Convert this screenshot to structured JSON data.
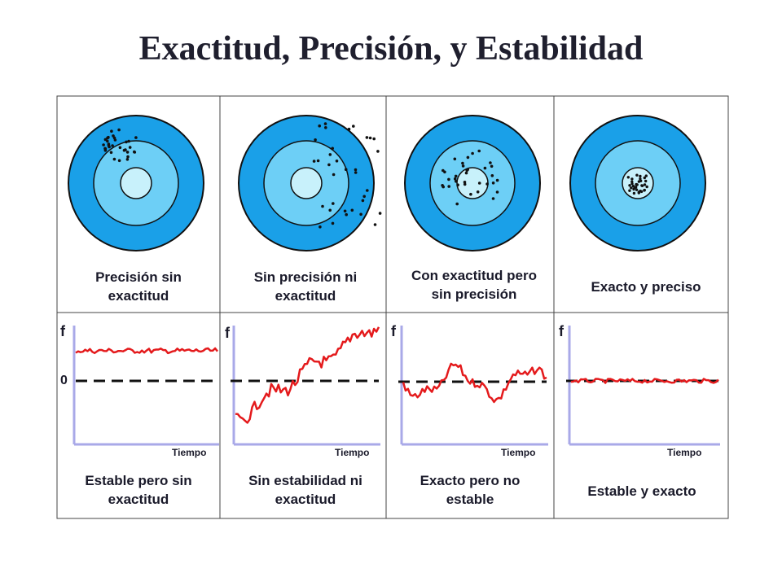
{
  "title": "Exactitud, Precisión, y Estabilidad",
  "colors": {
    "ring_outer": "#1aa0e8",
    "ring_middle": "#6dcff6",
    "ring_center": "#c8f1fb",
    "signal": "#e41a1c",
    "axis": "#a9a9e8",
    "frame": "#444444"
  },
  "targets": [
    {
      "label": "Precisión sin exactitud",
      "label_lines": [
        "Precisión sin",
        "exactitud"
      ]
    },
    {
      "label": "Sin precisión ni exactitud",
      "label_lines": [
        "Sin precisión ni",
        "exactitud"
      ]
    },
    {
      "label": "Con exactitud pero sin precisión",
      "label_lines": [
        "Con exactitud pero",
        "sin precisión"
      ]
    },
    {
      "label": "Exacto y preciso",
      "label_lines": [
        "Exacto y preciso"
      ]
    }
  ],
  "plots": [
    {
      "y_label": "f",
      "x_label": "Tiempo",
      "zero_label": "0",
      "caption_lines": [
        "Estable pero sin",
        "exactitud"
      ],
      "behaviour": "offset-stable"
    },
    {
      "y_label": "f",
      "x_label": "Tiempo",
      "caption_lines": [
        "Sin estabilidad ni",
        "exactitud"
      ],
      "behaviour": "drifting"
    },
    {
      "y_label": "f",
      "x_label": "Tiempo",
      "caption_lines": [
        "Exacto pero no",
        "estable"
      ],
      "behaviour": "fluctuating"
    },
    {
      "y_label": "f",
      "x_label": "Tiempo",
      "caption_lines": [
        "Estable y exacto"
      ],
      "behaviour": "stable-on-reference"
    }
  ]
}
